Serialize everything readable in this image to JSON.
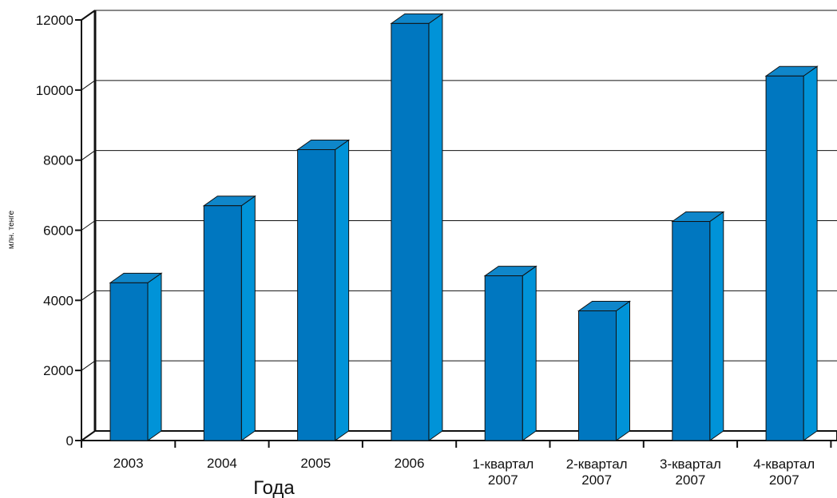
{
  "chart_data": {
    "type": "bar",
    "style": "3d-columns",
    "categories": [
      [
        "2003"
      ],
      [
        "2004"
      ],
      [
        "2005"
      ],
      [
        "2006"
      ],
      [
        "1-квартал",
        "2007"
      ],
      [
        "2-квартал",
        "2007"
      ],
      [
        "3-квартал",
        "2007"
      ],
      [
        "4-квартал",
        "2007"
      ]
    ],
    "values": [
      4500,
      6700,
      8300,
      11900,
      4700,
      3700,
      6250,
      10400
    ],
    "xlabel": "Года",
    "ylabel": "млн. тенге",
    "ylim": [
      0,
      12000
    ],
    "yticks": [
      0,
      2000,
      4000,
      6000,
      8000,
      10000,
      12000
    ],
    "ytick_labels": [
      "0",
      "2000",
      "4000",
      "6000",
      "8000",
      "10000",
      "12000"
    ],
    "grid": true,
    "colors": {
      "bar_front": "#0077c0",
      "bar_side": "#0093d8",
      "bar_top": "#0f86ca",
      "axes": "#111111",
      "grid": "#111111"
    }
  }
}
